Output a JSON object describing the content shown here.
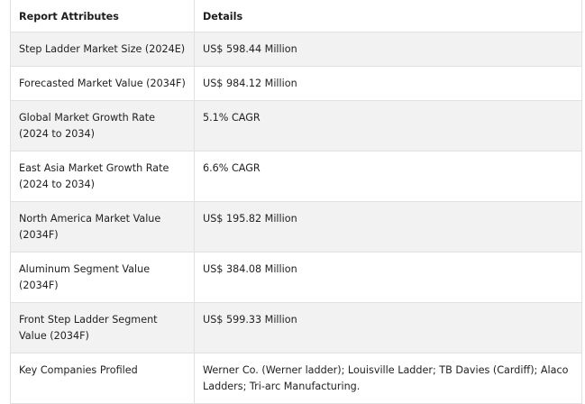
{
  "header": {
    "attributes": "Report Attributes",
    "details": "Details"
  },
  "rows": [
    {
      "attribute": "Step Ladder Market Size (2024E)",
      "detail": "US$ 598.44 Million"
    },
    {
      "attribute": "Forecasted Market Value (2034F)",
      "detail": "US$ 984.12 Million"
    },
    {
      "attribute": "Global Market Growth Rate (2024 to 2034)",
      "detail": "5.1% CAGR"
    },
    {
      "attribute": "East Asia Market Growth Rate (2024 to 2034)",
      "detail": "6.6% CAGR"
    },
    {
      "attribute": "North America Market Value (2034F)",
      "detail": "US$ 195.82 Million"
    },
    {
      "attribute": "Aluminum Segment Value (2034F)",
      "detail": "US$ 384.08 Million"
    },
    {
      "attribute": "Front Step Ladder Segment Value (2034F)",
      "detail": "US$ 599.33 Million"
    },
    {
      "attribute": "Key Companies Profiled",
      "detail": "Werner Co. (Werner ladder); Louisville Ladder; TB Davies (Cardiff); Alaco Ladders; Tri-arc Manufacturing."
    }
  ]
}
